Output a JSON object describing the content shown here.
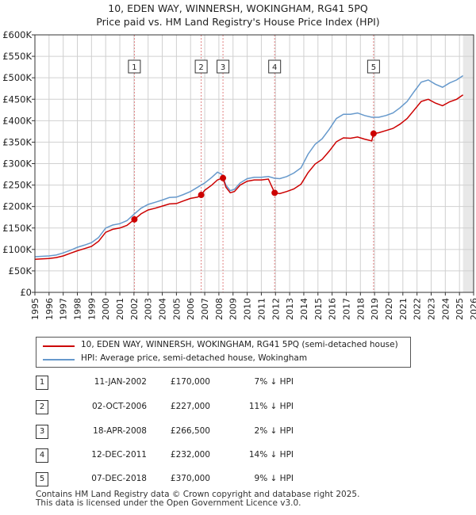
{
  "title_line1": "10, EDEN WAY, WINNERSH, WOKINGHAM, RG41 5PQ",
  "title_line2": "Price paid vs. HM Land Registry's House Price Index (HPI)",
  "colors": {
    "property": "#cc0000",
    "hpi": "#6699cc",
    "marker_line": "#e08080",
    "future_shade": "#e8e8e8"
  },
  "legend": {
    "property_label": "10, EDEN WAY, WINNERSH, WOKINGHAM, RG41 5PQ (semi-detached house)",
    "hpi_label": "HPI: Average price, semi-detached house, Wokingham"
  },
  "transactions": [
    {
      "num": "1",
      "date": "11-JAN-2002",
      "price": "£170,000",
      "hpi": "7% ↓ HPI"
    },
    {
      "num": "2",
      "date": "02-OCT-2006",
      "price": "£227,000",
      "hpi": "11% ↓ HPI"
    },
    {
      "num": "3",
      "date": "18-APR-2008",
      "price": "£266,500",
      "hpi": "2% ↓ HPI"
    },
    {
      "num": "4",
      "date": "12-DEC-2011",
      "price": "£232,000",
      "hpi": "14% ↓ HPI"
    },
    {
      "num": "5",
      "date": "07-DEC-2018",
      "price": "£370,000",
      "hpi": "9% ↓ HPI"
    }
  ],
  "footer_line1": "Contains HM Land Registry data © Crown copyright and database right 2025.",
  "footer_line2": "This data is licensed under the Open Government Licence v3.0.",
  "chart_data": {
    "type": "line",
    "title": "10, EDEN WAY, WINNERSH, WOKINGHAM, RG41 5PQ",
    "subtitle": "Price paid vs. HM Land Registry's House Price Index (HPI)",
    "xlabel": "",
    "ylabel": "",
    "xlim": [
      1995,
      2026
    ],
    "ylim": [
      0,
      600000
    ],
    "y_ticks": [
      0,
      50000,
      100000,
      150000,
      200000,
      250000,
      300000,
      350000,
      400000,
      450000,
      500000,
      550000,
      600000
    ],
    "y_tick_labels": [
      "£0",
      "£50K",
      "£100K",
      "£150K",
      "£200K",
      "£250K",
      "£300K",
      "£350K",
      "£400K",
      "£450K",
      "£500K",
      "£550K",
      "£600K"
    ],
    "x_ticks": [
      1995,
      1996,
      1997,
      1998,
      1999,
      2000,
      2001,
      2002,
      2003,
      2004,
      2005,
      2006,
      2007,
      2008,
      2009,
      2010,
      2011,
      2012,
      2013,
      2014,
      2015,
      2016,
      2017,
      2018,
      2019,
      2020,
      2021,
      2022,
      2023,
      2024,
      2025,
      2026
    ],
    "x_tick_labels": [
      "1995",
      "1996",
      "1997",
      "1998",
      "1999",
      "2000",
      "2001",
      "2002",
      "2003",
      "2004",
      "2005",
      "2006",
      "2007",
      "2008",
      "2009",
      "2010",
      "2011",
      "2012",
      "2013",
      "2014",
      "2015",
      "2016",
      "2017",
      "2018",
      "2019",
      "2020",
      "2021",
      "2022",
      "2023",
      "2024",
      "2025",
      "2026"
    ],
    "grid": true,
    "data_end": 2025.25,
    "series": [
      {
        "name": "HPI: Average price, semi-detached house, Wokingham",
        "x": [
          1995.0,
          1995.5,
          1996.0,
          1996.5,
          1997.0,
          1997.5,
          1998.0,
          1998.5,
          1999.0,
          1999.5,
          2000.0,
          2000.5,
          2001.0,
          2001.5,
          2002.0,
          2002.5,
          2003.0,
          2003.5,
          2004.0,
          2004.5,
          2005.0,
          2005.5,
          2006.0,
          2006.5,
          2007.0,
          2007.5,
          2007.9,
          2008.2,
          2008.5,
          2008.8,
          2009.1,
          2009.5,
          2010.0,
          2010.5,
          2011.0,
          2011.5,
          2011.9,
          2012.3,
          2012.8,
          2013.3,
          2013.8,
          2014.3,
          2014.8,
          2015.3,
          2015.8,
          2016.3,
          2016.8,
          2017.3,
          2017.8,
          2018.3,
          2018.8,
          2019.3,
          2019.8,
          2020.3,
          2020.8,
          2021.3,
          2021.8,
          2022.3,
          2022.8,
          2023.3,
          2023.8,
          2024.3,
          2024.8,
          2025.25
        ],
        "values": [
          83000,
          84000,
          85000,
          87000,
          92000,
          98000,
          105000,
          110000,
          116000,
          128000,
          150000,
          157000,
          160000,
          167000,
          182000,
          196000,
          205000,
          210000,
          215000,
          221000,
          222000,
          228000,
          235000,
          245000,
          255000,
          268000,
          280000,
          275000,
          250000,
          237000,
          240000,
          255000,
          265000,
          268000,
          268000,
          270000,
          266000,
          265000,
          270000,
          278000,
          290000,
          322000,
          345000,
          358000,
          380000,
          405000,
          415000,
          415000,
          418000,
          412000,
          408000,
          408000,
          412000,
          418000,
          430000,
          445000,
          468000,
          490000,
          495000,
          485000,
          478000,
          488000,
          495000,
          505000
        ]
      },
      {
        "name": "10, EDEN WAY, WINNERSH, WOKINGHAM, RG41 5PQ (semi-detached house)",
        "x": [
          1995.0,
          1995.5,
          1996.0,
          1996.5,
          1997.0,
          1997.5,
          1998.0,
          1998.5,
          1999.0,
          1999.5,
          2000.0,
          2000.5,
          2001.0,
          2001.5,
          2002.03,
          2002.5,
          2003.0,
          2003.5,
          2004.0,
          2004.5,
          2005.0,
          2005.5,
          2006.0,
          2006.5,
          2006.75,
          2007.0,
          2007.5,
          2007.9,
          2008.29,
          2008.5,
          2008.8,
          2009.1,
          2009.5,
          2010.0,
          2010.5,
          2011.0,
          2011.5,
          2011.94,
          2012.3,
          2012.8,
          2013.3,
          2013.8,
          2014.3,
          2014.8,
          2015.3,
          2015.8,
          2016.3,
          2016.8,
          2017.3,
          2017.8,
          2018.3,
          2018.8,
          2018.93,
          2019.3,
          2019.8,
          2020.3,
          2020.8,
          2021.3,
          2021.8,
          2022.3,
          2022.8,
          2023.3,
          2023.8,
          2024.3,
          2024.8,
          2025.25
        ],
        "values": [
          77000,
          78000,
          79000,
          81000,
          85000,
          91000,
          97000,
          102000,
          107000,
          119000,
          140000,
          147000,
          150000,
          156000,
          170000,
          183000,
          192000,
          196000,
          201000,
          206000,
          207000,
          213000,
          219000,
          222000,
          227000,
          238000,
          250000,
          262000,
          266500,
          245000,
          232000,
          235000,
          250000,
          259000,
          262000,
          262000,
          264000,
          232000,
          230000,
          235000,
          241000,
          252000,
          279000,
          299000,
          310000,
          329000,
          351000,
          360000,
          359000,
          362000,
          357000,
          353000,
          370000,
          372000,
          377000,
          382000,
          392000,
          405000,
          425000,
          445000,
          450000,
          441000,
          435000,
          444000,
          450000,
          460000
        ]
      }
    ],
    "sale_markers": [
      {
        "label": "1",
        "x": 2002.03,
        "value": 170000
      },
      {
        "label": "2",
        "x": 2006.75,
        "value": 227000
      },
      {
        "label": "3",
        "x": 2008.29,
        "value": 266500
      },
      {
        "label": "4",
        "x": 2011.94,
        "value": 232000
      },
      {
        "label": "5",
        "x": 2018.93,
        "value": 370000
      }
    ]
  }
}
